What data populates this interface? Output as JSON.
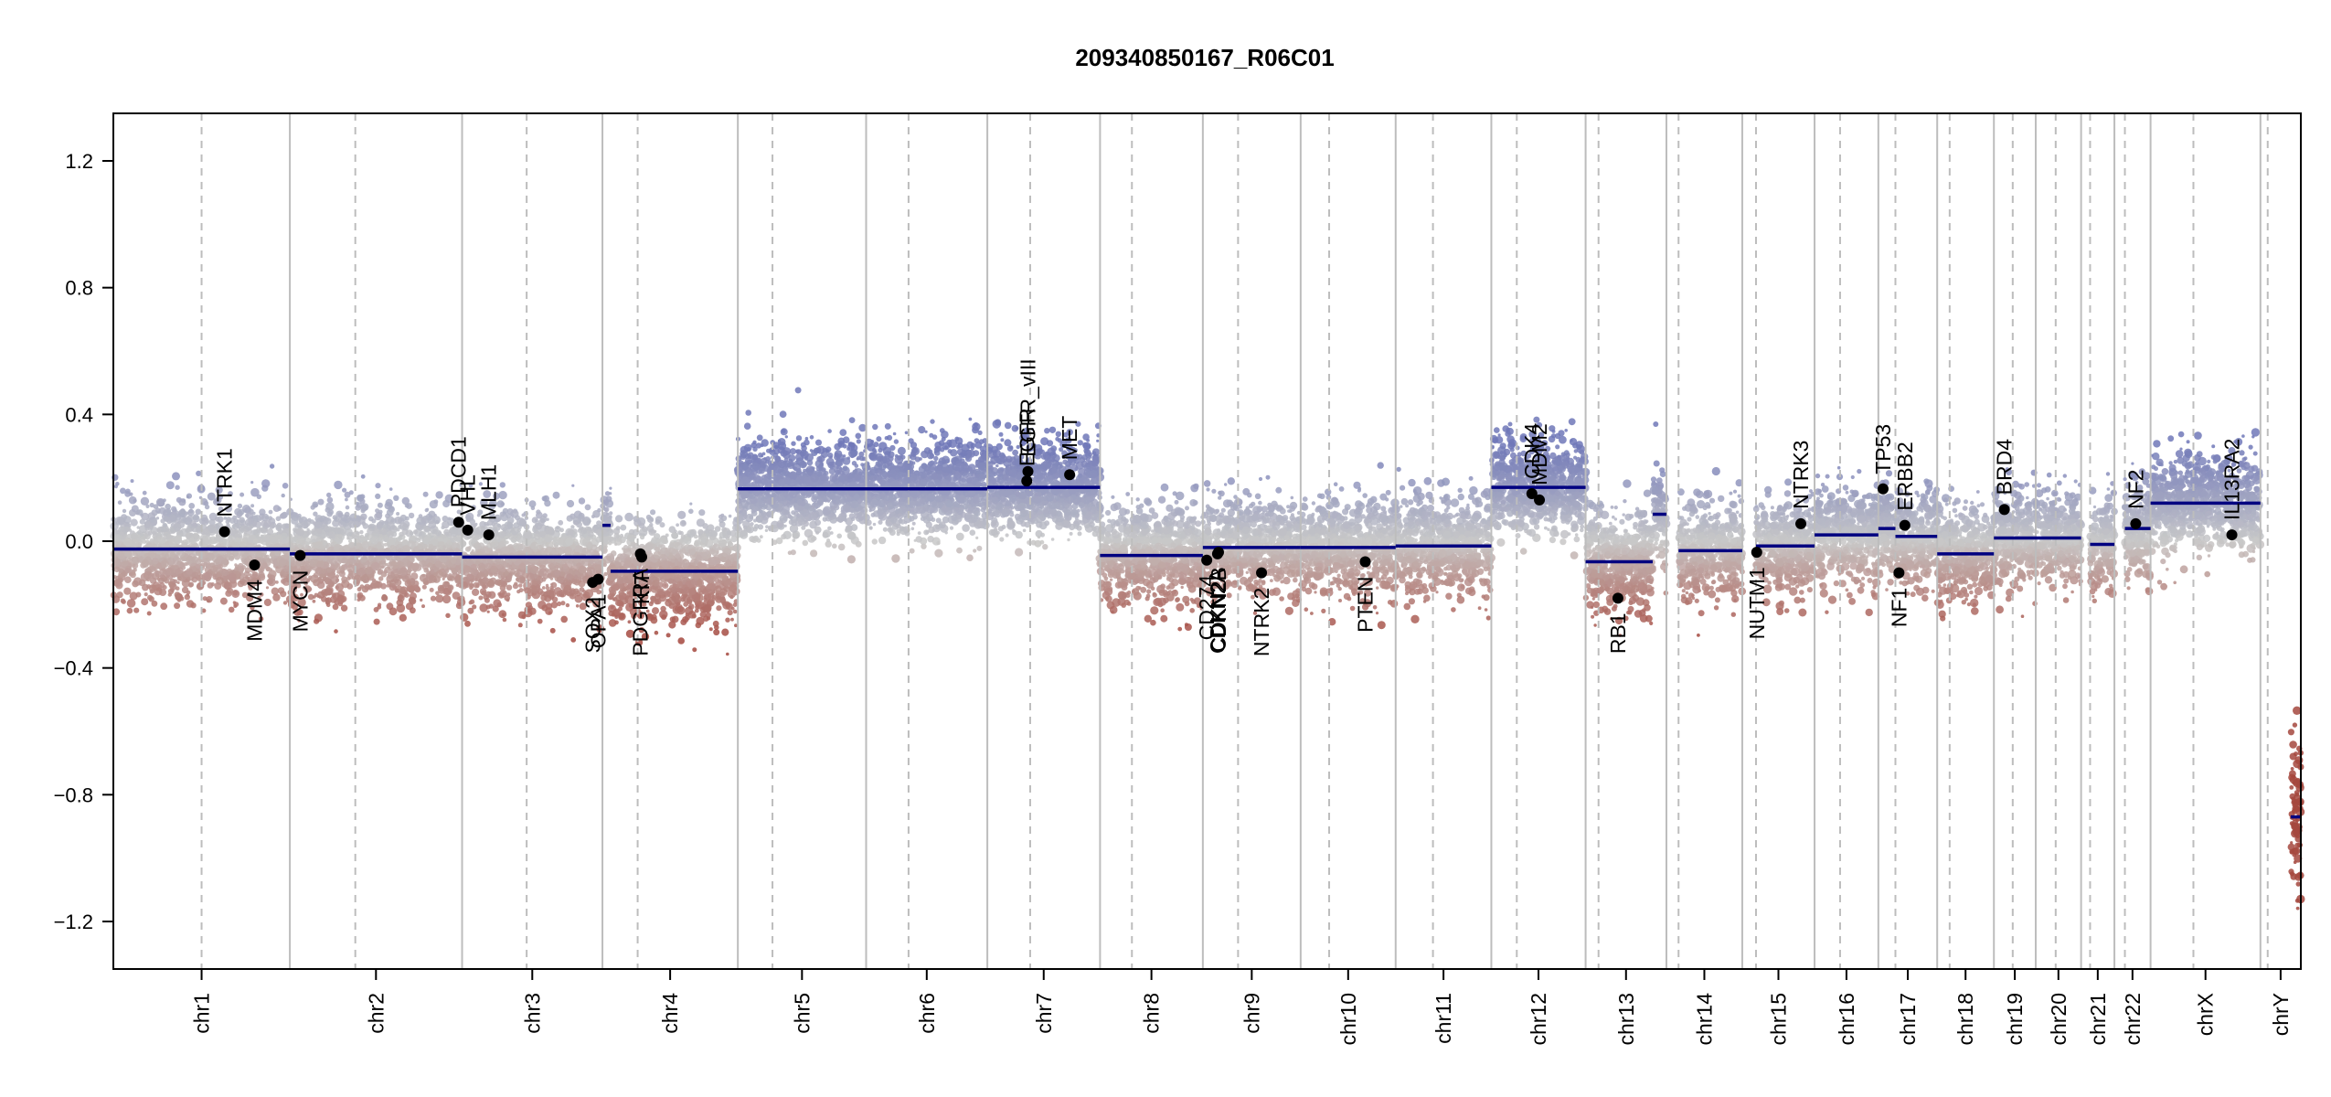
{
  "chart_data": {
    "type": "scatter",
    "title": "209340850167_R06C01",
    "xlabel": "",
    "ylabel": "",
    "ylim": [
      -1.35,
      1.35
    ],
    "y_ticks": [
      -1.2,
      -0.8,
      -0.4,
      0.0,
      0.4,
      0.8,
      1.2
    ],
    "y_tick_labels": [
      "−1.2",
      "−0.8",
      "−0.4",
      "0.0",
      "0.4",
      "0.8",
      "1.2"
    ],
    "grid": false,
    "legend": "none",
    "colors": {
      "gain": "#7b82bd",
      "neutral": "#c8c8c8",
      "loss": "#a8524a",
      "segment": "#000080",
      "gene": "#000000"
    },
    "chromosomes": [
      {
        "name": "chr1",
        "length": 249,
        "centromere": 0.5,
        "segments": [
          {
            "start": 0,
            "end": 1,
            "value": -0.025
          }
        ]
      },
      {
        "name": "chr2",
        "length": 243,
        "centromere": 0.38,
        "segments": [
          {
            "start": 0,
            "end": 1,
            "value": -0.04
          }
        ]
      },
      {
        "name": "chr3",
        "length": 198,
        "centromere": 0.46,
        "segments": [
          {
            "start": 0,
            "end": 1,
            "value": -0.05
          }
        ]
      },
      {
        "name": "chr4",
        "length": 191,
        "centromere": 0.26,
        "segments": [
          {
            "start": 0,
            "end": 0.06,
            "value": 0.05
          },
          {
            "start": 0.06,
            "end": 1,
            "value": -0.095
          }
        ]
      },
      {
        "name": "chr5",
        "length": 181,
        "centromere": 0.27,
        "segments": [
          {
            "start": 0,
            "end": 1,
            "value": 0.165
          }
        ]
      },
      {
        "name": "chr6",
        "length": 171,
        "centromere": 0.35,
        "segments": [
          {
            "start": 0,
            "end": 1,
            "value": 0.165
          }
        ]
      },
      {
        "name": "chr7",
        "length": 159,
        "centromere": 0.38,
        "segments": [
          {
            "start": 0,
            "end": 1,
            "value": 0.17
          }
        ]
      },
      {
        "name": "chr8",
        "length": 145,
        "centromere": 0.31,
        "segments": [
          {
            "start": 0,
            "end": 1,
            "value": -0.045
          }
        ]
      },
      {
        "name": "chr9",
        "length": 138,
        "centromere": 0.36,
        "segments": [
          {
            "start": 0,
            "end": 1,
            "value": -0.02
          }
        ]
      },
      {
        "name": "chr10",
        "length": 134,
        "centromere": 0.3,
        "segments": [
          {
            "start": 0,
            "end": 1,
            "value": -0.02
          }
        ]
      },
      {
        "name": "chr11",
        "length": 135,
        "centromere": 0.39,
        "segments": [
          {
            "start": 0,
            "end": 1,
            "value": -0.015
          }
        ]
      },
      {
        "name": "chr12",
        "length": 133,
        "centromere": 0.27,
        "segments": [
          {
            "start": 0,
            "end": 1,
            "value": 0.17
          }
        ]
      },
      {
        "name": "chr13",
        "length": 114,
        "centromere": 0.16,
        "segments": [
          {
            "start": 0,
            "end": 0.83,
            "value": -0.065
          },
          {
            "start": 0.83,
            "end": 1,
            "value": 0.085
          }
        ]
      },
      {
        "name": "chr14",
        "length": 107,
        "centromere": 0.16,
        "segments": [
          {
            "start": 0.16,
            "end": 1,
            "value": -0.03
          }
        ]
      },
      {
        "name": "chr15",
        "length": 102,
        "centromere": 0.19,
        "segments": [
          {
            "start": 0.19,
            "end": 1,
            "value": -0.015
          }
        ]
      },
      {
        "name": "chr16",
        "length": 90,
        "centromere": 0.4,
        "segments": [
          {
            "start": 0,
            "end": 1,
            "value": 0.02
          }
        ]
      },
      {
        "name": "chr17",
        "length": 83,
        "centromere": 0.29,
        "segments": [
          {
            "start": 0,
            "end": 0.29,
            "value": 0.04
          },
          {
            "start": 0.29,
            "end": 1,
            "value": 0.015
          }
        ]
      },
      {
        "name": "chr18",
        "length": 80,
        "centromere": 0.22,
        "segments": [
          {
            "start": 0,
            "end": 1,
            "value": -0.04
          }
        ]
      },
      {
        "name": "chr19",
        "length": 59,
        "centromere": 0.45,
        "segments": [
          {
            "start": 0,
            "end": 1,
            "value": 0.01
          }
        ]
      },
      {
        "name": "chr20",
        "length": 64,
        "centromere": 0.44,
        "segments": [
          {
            "start": 0,
            "end": 1,
            "value": 0.01
          }
        ]
      },
      {
        "name": "chr21",
        "length": 47,
        "centromere": 0.27,
        "segments": [
          {
            "start": 0.27,
            "end": 1,
            "value": -0.01
          }
        ]
      },
      {
        "name": "chr22",
        "length": 51,
        "centromere": 0.29,
        "segments": [
          {
            "start": 0.29,
            "end": 1,
            "value": 0.04
          }
        ]
      },
      {
        "name": "chrX",
        "length": 155,
        "centromere": 0.39,
        "segments": [
          {
            "start": 0,
            "end": 1,
            "value": 0.12
          }
        ]
      },
      {
        "name": "chrY",
        "length": 57,
        "centromere": 0.18,
        "segments": [
          {
            "start": 0.75,
            "end": 1,
            "value": -0.87
          }
        ]
      }
    ],
    "genes": [
      {
        "name": "NTRK1",
        "chrom": "chr1",
        "pos": 0.63,
        "value": 0.03,
        "label_side": "up"
      },
      {
        "name": "MDM4",
        "chrom": "chr1",
        "pos": 0.8,
        "value": -0.075,
        "label_side": "down"
      },
      {
        "name": "MYCN",
        "chrom": "chr2",
        "pos": 0.06,
        "value": -0.045,
        "label_side": "down"
      },
      {
        "name": "PDCD1",
        "chrom": "chr2",
        "pos": 0.98,
        "value": 0.06,
        "label_side": "up"
      },
      {
        "name": "VHL",
        "chrom": "chr3",
        "pos": 0.04,
        "value": 0.035,
        "label_side": "up"
      },
      {
        "name": "MLH1",
        "chrom": "chr3",
        "pos": 0.19,
        "value": 0.02,
        "label_side": "up"
      },
      {
        "name": "SOX2",
        "chrom": "chr3",
        "pos": 0.93,
        "value": -0.13,
        "label_side": "down"
      },
      {
        "name": "OPA1",
        "chrom": "chr3",
        "pos": 0.97,
        "value": -0.12,
        "label_side": "down"
      },
      {
        "name": "PDGFRA",
        "chrom": "chr4",
        "pos": 0.28,
        "value": -0.04,
        "label_side": "down"
      },
      {
        "name": "KIT",
        "chrom": "chr4",
        "pos": 0.29,
        "value": -0.05,
        "label_side": "down"
      },
      {
        "name": "EGFR",
        "chrom": "chr7",
        "pos": 0.35,
        "value": 0.19,
        "label_side": "up"
      },
      {
        "name": "EGFR_vIII",
        "chrom": "chr7",
        "pos": 0.36,
        "value": 0.22,
        "label_side": "up"
      },
      {
        "name": "MET",
        "chrom": "chr7",
        "pos": 0.73,
        "value": 0.21,
        "label_side": "up"
      },
      {
        "name": "CD274",
        "chrom": "chr9",
        "pos": 0.04,
        "value": -0.06,
        "label_side": "down"
      },
      {
        "name": "CDKN2A",
        "chrom": "chr9",
        "pos": 0.15,
        "value": -0.04,
        "label_side": "down"
      },
      {
        "name": "CDKN2B",
        "chrom": "chr9",
        "pos": 0.16,
        "value": -0.035,
        "label_side": "down"
      },
      {
        "name": "NTRK2",
        "chrom": "chr9",
        "pos": 0.6,
        "value": -0.1,
        "label_side": "down"
      },
      {
        "name": "PTEN",
        "chrom": "chr10",
        "pos": 0.68,
        "value": -0.065,
        "label_side": "down"
      },
      {
        "name": "CDK4",
        "chrom": "chr12",
        "pos": 0.43,
        "value": 0.15,
        "label_side": "up"
      },
      {
        "name": "MDM2",
        "chrom": "chr12",
        "pos": 0.51,
        "value": 0.13,
        "label_side": "up"
      },
      {
        "name": "RB1",
        "chrom": "chr13",
        "pos": 0.4,
        "value": -0.18,
        "label_side": "down"
      },
      {
        "name": "NUTM1",
        "chrom": "chr15",
        "pos": 0.2,
        "value": -0.035,
        "label_side": "down"
      },
      {
        "name": "NTRK3",
        "chrom": "chr15",
        "pos": 0.81,
        "value": 0.055,
        "label_side": "up"
      },
      {
        "name": "TP53",
        "chrom": "chr17",
        "pos": 0.08,
        "value": 0.165,
        "label_side": "up"
      },
      {
        "name": "NF1",
        "chrom": "chr17",
        "pos": 0.35,
        "value": -0.1,
        "label_side": "down"
      },
      {
        "name": "ERBB2",
        "chrom": "chr17",
        "pos": 0.45,
        "value": 0.05,
        "label_side": "up"
      },
      {
        "name": "BRD4",
        "chrom": "chr19",
        "pos": 0.25,
        "value": 0.1,
        "label_side": "up"
      },
      {
        "name": "NF2",
        "chrom": "chr22",
        "pos": 0.59,
        "value": 0.055,
        "label_side": "up"
      },
      {
        "name": "IL13RA2",
        "chrom": "chrX",
        "pos": 0.74,
        "value": 0.02,
        "label_side": "up"
      }
    ]
  }
}
